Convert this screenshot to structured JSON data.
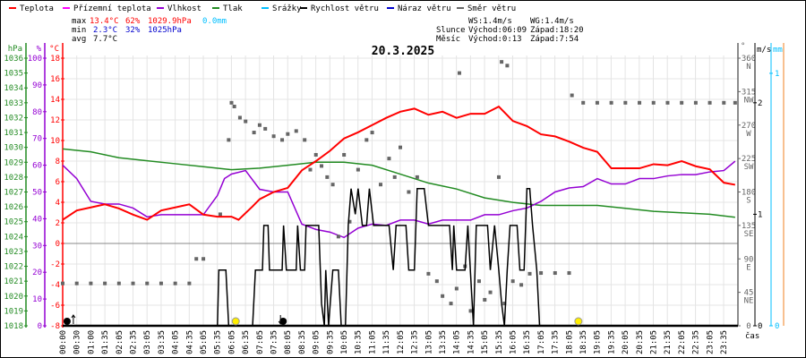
{
  "legend": [
    {
      "label": "Teplota",
      "color": "#ff0000"
    },
    {
      "label": "Přízemní teplota",
      "color": "#ff00ff"
    },
    {
      "label": "Vlhkost",
      "color": "#9400d3"
    },
    {
      "label": "Tlak",
      "color": "#228b22"
    },
    {
      "label": "Srážky",
      "color": "#00bfff"
    },
    {
      "label": "Rychlost větru",
      "color": "#000000"
    },
    {
      "label": "Náraz větru",
      "color": "#0000cd"
    },
    {
      "label": "Směr větru",
      "color": "#666666"
    }
  ],
  "stats": {
    "max": {
      "label": "max",
      "temp": "13.4°C",
      "hum": "62%",
      "press": "1029.9hPa",
      "rain": "0.0mm"
    },
    "min": {
      "label": "min",
      "temp": "2.3°C",
      "hum": "32%",
      "press": "1025hPa"
    },
    "avg": {
      "label": "avg",
      "temp": "7.7°C"
    }
  },
  "astro": {
    "ws": "WS:1.4m/s",
    "wg": "WG:1.4m/s",
    "sun_label": "Slunce",
    "sun_rise": "Východ:06:09",
    "sun_set": "Západ:18:20",
    "moon_label": "Měsíc",
    "moon_rise": "Východ:0:13",
    "moon_set": "Západ:7:54"
  },
  "colors": {
    "temp": "#ff0000",
    "hum": "#9400d3",
    "press": "#228b22",
    "rain": "#00bfff",
    "wind": "#000000",
    "gust": "#0000cd",
    "dir": "#666666",
    "grid": "#e4e4e4"
  },
  "chart_data": {
    "type": "line",
    "title": "20.3.2025",
    "xlabel": "čas",
    "x_ticks": [
      "00:00",
      "00:30",
      "01:00",
      "01:35",
      "02:05",
      "02:35",
      "03:05",
      "03:35",
      "04:05",
      "04:35",
      "05:05",
      "05:35",
      "06:05",
      "06:35",
      "07:05",
      "07:35",
      "08:05",
      "08:35",
      "09:05",
      "09:35",
      "10:05",
      "10:35",
      "11:05",
      "11:35",
      "12:05",
      "12:35",
      "13:05",
      "13:35",
      "14:05",
      "14:35",
      "15:05",
      "15:35",
      "16:05",
      "16:35",
      "17:05",
      "17:35",
      "18:05",
      "18:35",
      "19:05",
      "19:35",
      "20:05",
      "20:35",
      "21:05",
      "21:35",
      "22:05",
      "22:35",
      "23:05",
      "23:35"
    ],
    "axes": {
      "press": {
        "unit": "hPa",
        "range": [
          1018,
          1036
        ],
        "ticks": [
          "1036",
          "1035",
          "1034",
          "1033",
          "1032",
          "1031",
          "1030",
          "1029",
          "1028",
          "1027",
          "1026",
          "1025",
          "1024",
          "1023",
          "1022",
          "1021",
          "1020",
          "1019",
          "1018"
        ]
      },
      "hum": {
        "unit": "%",
        "range": [
          0,
          100
        ],
        "ticks": [
          "100",
          "90",
          "80",
          "70",
          "60",
          "50",
          "40",
          "30",
          "20",
          "10",
          "0"
        ]
      },
      "temp": {
        "unit": "°C",
        "range": [
          -8,
          18
        ],
        "ticks": [
          "18",
          "16",
          "14",
          "12",
          "10",
          "8",
          "6",
          "4",
          "2",
          "0",
          "-2",
          "-4",
          "-6",
          "-8"
        ]
      },
      "dir": {
        "unit": "°",
        "range": [
          0,
          360
        ],
        "ticks": [
          {
            "v": "360",
            "d": "N"
          },
          {
            "v": "315",
            "d": "NW"
          },
          {
            "v": "270",
            "d": "W"
          },
          {
            "v": "225",
            "d": "SW"
          },
          {
            "v": "180",
            "d": "S"
          },
          {
            "v": "135",
            "d": "SE"
          },
          {
            "v": "90",
            "d": "E"
          },
          {
            "v": "45",
            "d": "NE"
          },
          {
            "v": "0",
            "d": ""
          }
        ]
      },
      "wind": {
        "unit": "m/s",
        "range": [
          0,
          2.4
        ],
        "ticks": [
          "2",
          "1",
          "0"
        ]
      },
      "rain": {
        "unit": "mm",
        "range": [
          0,
          1
        ],
        "ticks": [
          "1",
          "0"
        ]
      }
    },
    "series": {
      "temp": [
        [
          0,
          2.3
        ],
        [
          0.5,
          3.2
        ],
        [
          1,
          3.5
        ],
        [
          1.5,
          3.8
        ],
        [
          2,
          3.4
        ],
        [
          2.5,
          2.8
        ],
        [
          3,
          2.3
        ],
        [
          3.5,
          3.2
        ],
        [
          4,
          3.5
        ],
        [
          4.5,
          3.8
        ],
        [
          5,
          2.8
        ],
        [
          5.5,
          2.6
        ],
        [
          6,
          2.6
        ],
        [
          6.25,
          2.3
        ],
        [
          6.75,
          3.6
        ],
        [
          7,
          4.3
        ],
        [
          7.5,
          5
        ],
        [
          8,
          5.4
        ],
        [
          8.5,
          7.1
        ],
        [
          9,
          8
        ],
        [
          9.5,
          9
        ],
        [
          10,
          10.2
        ],
        [
          10.5,
          10.8
        ],
        [
          11,
          11.5
        ],
        [
          11.5,
          12.2
        ],
        [
          12,
          12.8
        ],
        [
          12.5,
          13.1
        ],
        [
          13,
          12.5
        ],
        [
          13.5,
          12.8
        ],
        [
          14,
          12.2
        ],
        [
          14.5,
          12.6
        ],
        [
          15,
          12.6
        ],
        [
          15.5,
          13.3
        ],
        [
          16,
          11.9
        ],
        [
          16.5,
          11.4
        ],
        [
          17,
          10.6
        ],
        [
          17.5,
          10.4
        ],
        [
          18,
          9.9
        ],
        [
          18.5,
          9.3
        ],
        [
          19,
          8.9
        ],
        [
          19.5,
          7.3
        ],
        [
          20,
          7.3
        ],
        [
          20.5,
          7.3
        ],
        [
          21,
          7.7
        ],
        [
          21.5,
          7.6
        ],
        [
          22,
          8
        ],
        [
          22.5,
          7.5
        ],
        [
          23,
          7.2
        ],
        [
          23.5,
          5.9
        ],
        [
          23.9,
          5.7
        ]
      ],
      "hum": [
        [
          0,
          60
        ],
        [
          0.5,
          55
        ],
        [
          1,
          46.5
        ],
        [
          1.5,
          45.5
        ],
        [
          2,
          45.5
        ],
        [
          2.5,
          44
        ],
        [
          3,
          40.7
        ],
        [
          3.5,
          41.5
        ],
        [
          4,
          41.5
        ],
        [
          4.5,
          41.5
        ],
        [
          5,
          41.5
        ],
        [
          5.5,
          48.7
        ],
        [
          5.75,
          55
        ],
        [
          6,
          56.7
        ],
        [
          6.5,
          58
        ],
        [
          7,
          51
        ],
        [
          7.5,
          50
        ],
        [
          8,
          50
        ],
        [
          8.5,
          38
        ],
        [
          9,
          36
        ],
        [
          9.5,
          35
        ],
        [
          10,
          33
        ],
        [
          10.5,
          36.5
        ],
        [
          11,
          38
        ],
        [
          11.5,
          37.5
        ],
        [
          12,
          39.5
        ],
        [
          12.5,
          39.5
        ],
        [
          13,
          38
        ],
        [
          13.5,
          39.5
        ],
        [
          14,
          39.5
        ],
        [
          14.5,
          39.5
        ],
        [
          15,
          41.5
        ],
        [
          15.5,
          41.5
        ],
        [
          16,
          43
        ],
        [
          16.5,
          44
        ],
        [
          17,
          46.5
        ],
        [
          17.5,
          50
        ],
        [
          18,
          51.5
        ],
        [
          18.5,
          52
        ],
        [
          19,
          55
        ],
        [
          19.5,
          53
        ],
        [
          20,
          53
        ],
        [
          20.5,
          55
        ],
        [
          21,
          55
        ],
        [
          21.5,
          56
        ],
        [
          22,
          56.5
        ],
        [
          22.5,
          56.5
        ],
        [
          23,
          57.5
        ],
        [
          23.5,
          58
        ],
        [
          23.9,
          61.5
        ]
      ],
      "press": [
        [
          0,
          1029.9
        ],
        [
          1,
          1029.7
        ],
        [
          2,
          1029.3
        ],
        [
          3,
          1029.1
        ],
        [
          4,
          1028.9
        ],
        [
          5,
          1028.7
        ],
        [
          6,
          1028.5
        ],
        [
          7,
          1028.6
        ],
        [
          8,
          1028.8
        ],
        [
          9,
          1029
        ],
        [
          10,
          1029
        ],
        [
          11,
          1028.8
        ],
        [
          12,
          1028.2
        ],
        [
          13,
          1027.6
        ],
        [
          14,
          1027.2
        ],
        [
          15,
          1026.6
        ],
        [
          16,
          1026.3
        ],
        [
          17,
          1026.1
        ],
        [
          18,
          1026.1
        ],
        [
          19,
          1026.1
        ],
        [
          20,
          1025.9
        ],
        [
          21,
          1025.7
        ],
        [
          22,
          1025.6
        ],
        [
          23,
          1025.5
        ],
        [
          23.9,
          1025.3
        ]
      ],
      "wind": [
        [
          0,
          0
        ],
        [
          5.5,
          0
        ],
        [
          5.55,
          0.5
        ],
        [
          5.8,
          0.5
        ],
        [
          5.9,
          0
        ],
        [
          6.75,
          0
        ],
        [
          6.85,
          0.5
        ],
        [
          7.1,
          0.5
        ],
        [
          7.15,
          0.9
        ],
        [
          7.3,
          0.9
        ],
        [
          7.35,
          0.5
        ],
        [
          7.8,
          0.5
        ],
        [
          7.85,
          0.9
        ],
        [
          7.95,
          0.5
        ],
        [
          8.3,
          0.5
        ],
        [
          8.35,
          0.9
        ],
        [
          8.45,
          0.5
        ],
        [
          8.6,
          0.5
        ],
        [
          8.65,
          0.9
        ],
        [
          9.1,
          0.9
        ],
        [
          9.2,
          0.2
        ],
        [
          9.3,
          0
        ],
        [
          9.35,
          0.5
        ],
        [
          9.45,
          0
        ],
        [
          9.6,
          0.5
        ],
        [
          9.8,
          0.5
        ],
        [
          9.9,
          0
        ],
        [
          10.05,
          0
        ],
        [
          10.15,
          0.9
        ],
        [
          10.25,
          1.23
        ],
        [
          10.4,
          1
        ],
        [
          10.5,
          1.23
        ],
        [
          10.65,
          0.9
        ],
        [
          10.8,
          0.9
        ],
        [
          10.9,
          1.23
        ],
        [
          11.05,
          0.9
        ],
        [
          11.6,
          0.9
        ],
        [
          11.75,
          0.5
        ],
        [
          11.85,
          0.9
        ],
        [
          12.2,
          0.9
        ],
        [
          12.3,
          0.5
        ],
        [
          12.5,
          0.5
        ],
        [
          12.6,
          1.23
        ],
        [
          12.85,
          1.23
        ],
        [
          13,
          0.9
        ],
        [
          13.75,
          0.9
        ],
        [
          13.85,
          0.5
        ],
        [
          13.9,
          0.9
        ],
        [
          14,
          0.5
        ],
        [
          14.3,
          0.5
        ],
        [
          14.4,
          0.9
        ],
        [
          14.6,
          0
        ],
        [
          14.7,
          0.9
        ],
        [
          15.1,
          0.9
        ],
        [
          15.2,
          0.5
        ],
        [
          15.35,
          0.9
        ],
        [
          15.5,
          0.5
        ],
        [
          15.6,
          0.2
        ],
        [
          15.7,
          0
        ],
        [
          15.8,
          0.5
        ],
        [
          15.9,
          0.9
        ],
        [
          16.15,
          0.9
        ],
        [
          16.25,
          0.5
        ],
        [
          16.4,
          0.5
        ],
        [
          16.5,
          1.23
        ],
        [
          16.6,
          1.23
        ],
        [
          16.7,
          0.9
        ],
        [
          16.85,
          0.5
        ],
        [
          16.95,
          0
        ],
        [
          24,
          0
        ]
      ],
      "rain": [
        [
          0,
          0
        ],
        [
          24,
          0
        ]
      ],
      "dir": [
        [
          0,
          57
        ],
        [
          0.5,
          57
        ],
        [
          1,
          57
        ],
        [
          1.5,
          57
        ],
        [
          2,
          57
        ],
        [
          2.5,
          57
        ],
        [
          3,
          57
        ],
        [
          3.5,
          57
        ],
        [
          4,
          57
        ],
        [
          4.5,
          57
        ],
        [
          4.75,
          90
        ],
        [
          5,
          90
        ],
        [
          5.6,
          150
        ],
        [
          5.9,
          250
        ],
        [
          6,
          300
        ],
        [
          6.1,
          295
        ],
        [
          6.3,
          280
        ],
        [
          6.5,
          275
        ],
        [
          6.8,
          260
        ],
        [
          7,
          270
        ],
        [
          7.2,
          265
        ],
        [
          7.5,
          255
        ],
        [
          7.8,
          250
        ],
        [
          8,
          258
        ],
        [
          8.3,
          262
        ],
        [
          8.6,
          250
        ],
        [
          8.8,
          210
        ],
        [
          9,
          230
        ],
        [
          9.2,
          215
        ],
        [
          9.4,
          200
        ],
        [
          9.6,
          190
        ],
        [
          9.8,
          120
        ],
        [
          10,
          230
        ],
        [
          10.2,
          140
        ],
        [
          10.5,
          210
        ],
        [
          10.8,
          250
        ],
        [
          11,
          260
        ],
        [
          11.3,
          190
        ],
        [
          11.6,
          225
        ],
        [
          11.8,
          200
        ],
        [
          12,
          240
        ],
        [
          12.3,
          180
        ],
        [
          12.6,
          200
        ],
        [
          13,
          70
        ],
        [
          13.3,
          60
        ],
        [
          13.5,
          40
        ],
        [
          13.8,
          30
        ],
        [
          14,
          50
        ],
        [
          14.1,
          340
        ],
        [
          14.3,
          80
        ],
        [
          14.5,
          20
        ],
        [
          14.8,
          60
        ],
        [
          15,
          35
        ],
        [
          15.2,
          45
        ],
        [
          15.5,
          200
        ],
        [
          15.6,
          355
        ],
        [
          15.7,
          30
        ],
        [
          15.8,
          350
        ],
        [
          16,
          60
        ],
        [
          16.3,
          55
        ],
        [
          16.6,
          70
        ],
        [
          17,
          71
        ],
        [
          17.5,
          71
        ],
        [
          18,
          71
        ],
        [
          18.1,
          310
        ],
        [
          18.5,
          300
        ],
        [
          19,
          300
        ],
        [
          19.5,
          300
        ],
        [
          20,
          300
        ],
        [
          20.5,
          300
        ],
        [
          21,
          300
        ],
        [
          21.5,
          300
        ],
        [
          22,
          300
        ],
        [
          22.5,
          300
        ],
        [
          23,
          300
        ],
        [
          23.5,
          300
        ],
        [
          23.9,
          300
        ]
      ]
    },
    "markers": {
      "sunrise_h": 6.15,
      "sunset_h": 18.33,
      "moonrise_h": 0.22,
      "moonset_h": 7.9
    }
  }
}
